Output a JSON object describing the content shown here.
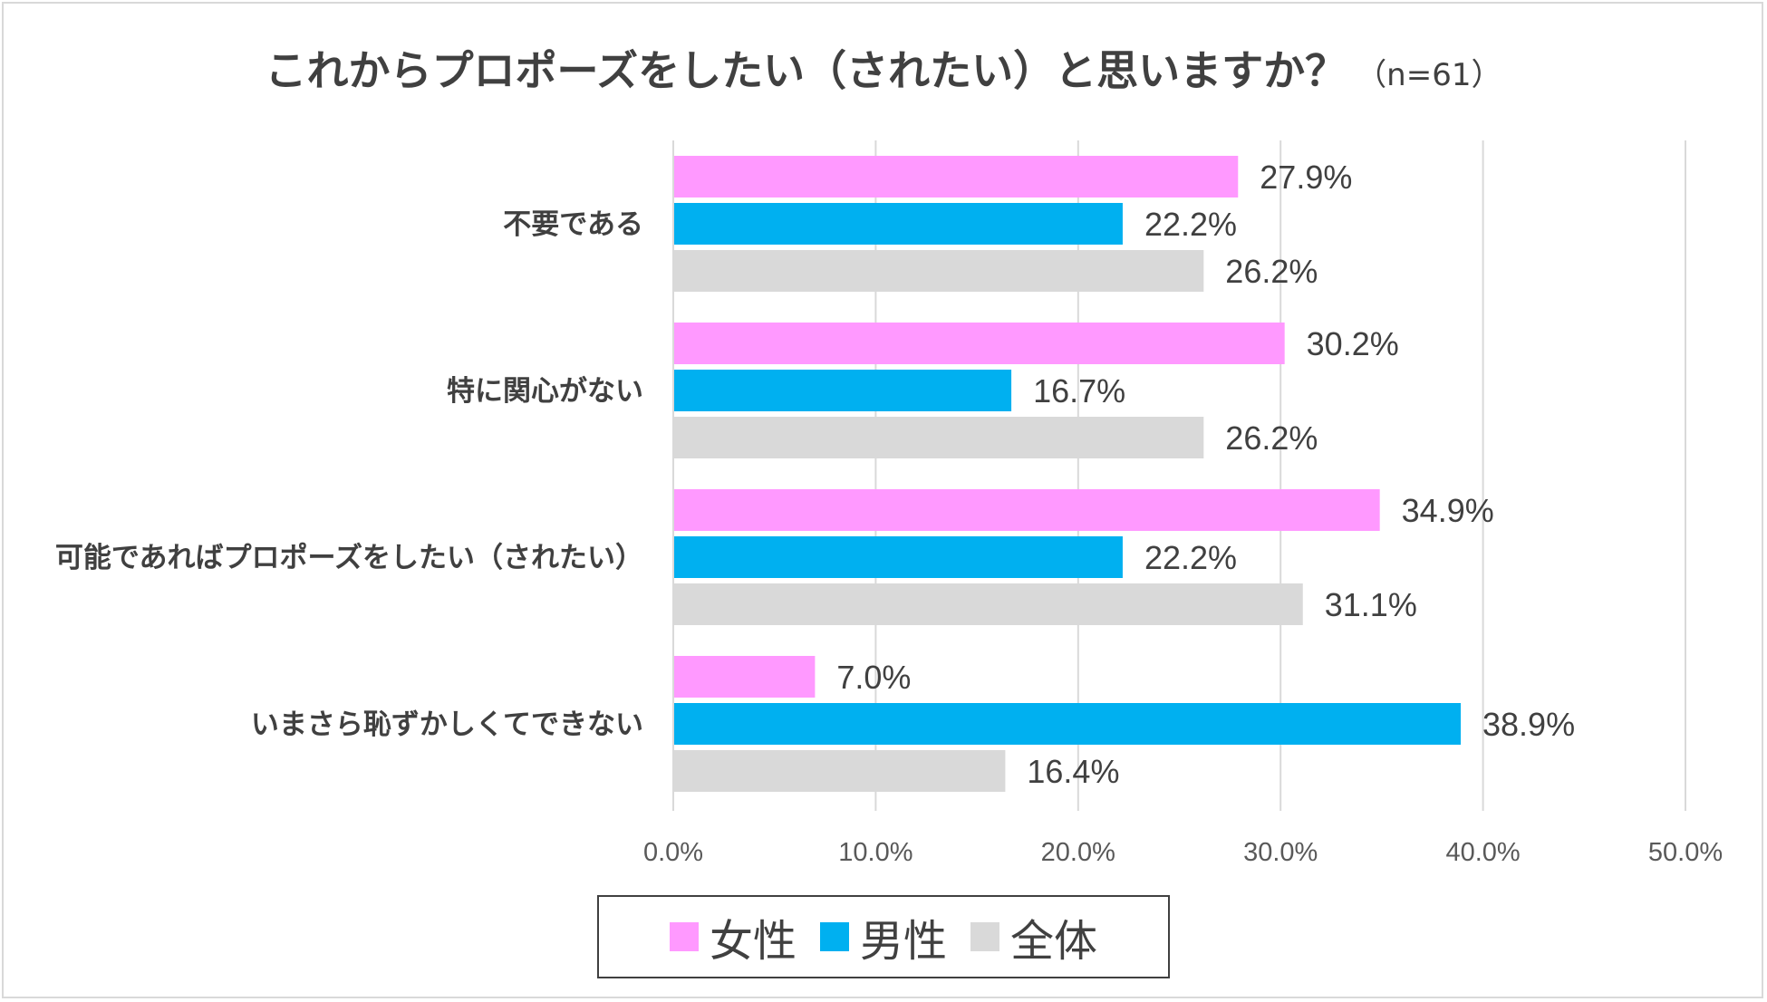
{
  "chart_data": {
    "type": "bar",
    "orientation": "horizontal",
    "title": "これからプロポーズをしたい（されたい）と思いますか？",
    "subtitle": "（n=61）",
    "categories": [
      "不要である",
      "特に関心がない",
      "可能であればプロポーズをしたい（されたい）",
      "いまさら恥ずかしくてできない"
    ],
    "series": [
      {
        "name": "女性",
        "color": "#ff99ff",
        "values": [
          27.9,
          30.2,
          34.9,
          7.0
        ]
      },
      {
        "name": "男性",
        "color": "#00b0f0",
        "values": [
          22.2,
          16.7,
          22.2,
          38.9
        ]
      },
      {
        "name": "全体",
        "color": "#d9d9d9",
        "values": [
          26.2,
          26.2,
          31.1,
          16.4
        ]
      }
    ],
    "xlim": [
      0,
      50
    ],
    "x_ticks": [
      0,
      10,
      20,
      30,
      40,
      50
    ],
    "x_tick_labels": [
      "0.0%",
      "10.0%",
      "20.0%",
      "30.0%",
      "40.0%",
      "50.0%"
    ],
    "data_labels": [
      [
        "27.9%",
        "30.2%",
        "34.9%",
        "7.0%"
      ],
      [
        "22.2%",
        "16.7%",
        "22.2%",
        "38.9%"
      ],
      [
        "26.2%",
        "26.2%",
        "31.1%",
        "16.4%"
      ]
    ],
    "xlabel": "",
    "ylabel": "",
    "grid": true,
    "legend_position": "bottom"
  }
}
